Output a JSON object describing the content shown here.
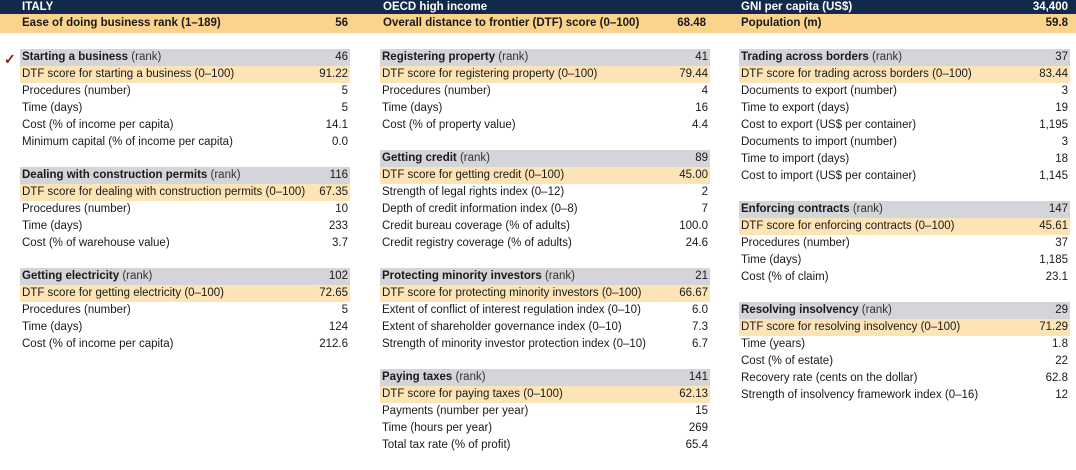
{
  "header": {
    "country": "ITALY",
    "income_group": "OECD high income",
    "gni_label": "GNI per capita (US$)",
    "gni_value": "34,400",
    "ease_label": "Ease of doing business rank (1–189)",
    "ease_value": "56",
    "dtf_label": "Overall distance to frontier (DTF) score (0–100)",
    "dtf_value": "68.48",
    "pop_label": "Population (m)",
    "pop_value": "59.8"
  },
  "marker": "✓",
  "columns": [
    [
      {
        "title": "Starting a business",
        "rank_suffix": " (rank)",
        "rank": "46",
        "rows": [
          {
            "label": "DTF score for starting a business (0–100)",
            "value": "91.22"
          },
          {
            "label": "Procedures (number)",
            "value": "5"
          },
          {
            "label": "Time (days)",
            "value": "5"
          },
          {
            "label": "Cost (% of income per capita)",
            "value": "14.1"
          },
          {
            "label": "Minimum capital (% of income per capita)",
            "value": "0.0"
          }
        ]
      },
      {
        "title": "Dealing with construction permits",
        "rank_suffix": " (rank)",
        "rank": "116",
        "rows": [
          {
            "label": "DTF score for dealing with construction permits (0–100)",
            "value": "67.35"
          },
          {
            "label": "Procedures (number)",
            "value": "10"
          },
          {
            "label": "Time (days)",
            "value": "233"
          },
          {
            "label": "Cost (% of warehouse value)",
            "value": "3.7"
          }
        ]
      },
      {
        "title": "Getting electricity",
        "rank_suffix": " (rank)",
        "rank": "102",
        "rows": [
          {
            "label": "DTF score for getting electricity (0–100)",
            "value": "72.65"
          },
          {
            "label": "Procedures (number)",
            "value": "5"
          },
          {
            "label": "Time (days)",
            "value": "124"
          },
          {
            "label": "Cost (% of income per capita)",
            "value": "212.6"
          }
        ]
      }
    ],
    [
      {
        "title": "Registering property",
        "rank_suffix": " (rank)",
        "rank": "41",
        "rows": [
          {
            "label": "DTF score for registering property (0–100)",
            "value": "79.44"
          },
          {
            "label": "Procedures (number)",
            "value": "4"
          },
          {
            "label": "Time (days)",
            "value": "16"
          },
          {
            "label": "Cost (% of property value)",
            "value": "4.4"
          }
        ]
      },
      {
        "title": "Getting credit",
        "rank_suffix": " (rank)",
        "rank": "89",
        "rows": [
          {
            "label": "DTF score for getting credit (0–100)",
            "value": "45.00"
          },
          {
            "label": "Strength of legal rights index (0–12)",
            "value": "2"
          },
          {
            "label": "Depth of credit information index (0–8)",
            "value": "7"
          },
          {
            "label": "Credit bureau coverage (% of adults)",
            "value": "100.0"
          },
          {
            "label": "Credit registry coverage (% of adults)",
            "value": "24.6"
          }
        ]
      },
      {
        "title": "Protecting minority investors",
        "rank_suffix": " (rank)",
        "rank": "21",
        "rows": [
          {
            "label": "DTF score for protecting minority investors (0–100)",
            "value": "66.67"
          },
          {
            "label": "Extent of conflict of interest regulation index (0–10)",
            "value": "6.0"
          },
          {
            "label": "Extent of shareholder governance index (0–10)",
            "value": "7.3"
          },
          {
            "label": "Strength of minority investor protection index (0–10)",
            "value": "6.7"
          }
        ]
      },
      {
        "title": "Paying taxes",
        "rank_suffix": " (rank)",
        "rank": "141",
        "rows": [
          {
            "label": "DTF score for paying taxes (0–100)",
            "value": "62.13"
          },
          {
            "label": "Payments (number per year)",
            "value": "15"
          },
          {
            "label": "Time (hours per year)",
            "value": "269"
          },
          {
            "label": "Total tax rate (% of profit)",
            "value": "65.4"
          }
        ]
      }
    ],
    [
      {
        "title": "Trading across borders",
        "rank_suffix": " (rank)",
        "rank": "37",
        "rows": [
          {
            "label": "DTF score for trading across borders (0–100)",
            "value": "83.44"
          },
          {
            "label": "Documents to export (number)",
            "value": "3"
          },
          {
            "label": "Time to export (days)",
            "value": "19"
          },
          {
            "label": "Cost to export (US$ per container)",
            "value": "1,195"
          },
          {
            "label": "Documents to import (number)",
            "value": "3"
          },
          {
            "label": "Time to import (days)",
            "value": "18"
          },
          {
            "label": "Cost to import (US$ per container)",
            "value": "1,145"
          }
        ]
      },
      {
        "title": "Enforcing contracts",
        "rank_suffix": " (rank)",
        "rank": "147",
        "rows": [
          {
            "label": "DTF score for enforcing contracts (0–100)",
            "value": "45.61"
          },
          {
            "label": "Procedures (number)",
            "value": "37"
          },
          {
            "label": "Time (days)",
            "value": "1,185"
          },
          {
            "label": "Cost (% of claim)",
            "value": "23.1"
          }
        ]
      },
      {
        "title": "Resolving insolvency",
        "rank_suffix": " (rank)",
        "rank": "29",
        "rows": [
          {
            "label": "DTF score for resolving insolvency (0–100)",
            "value": "71.29"
          },
          {
            "label": "Time (years)",
            "value": "1.8"
          },
          {
            "label": "Cost (% of estate)",
            "value": "22"
          },
          {
            "label": "Recovery rate (cents on the dollar)",
            "value": "62.8"
          },
          {
            "label": "Strength of insolvency framework index (0–16)",
            "value": "12"
          }
        ]
      }
    ]
  ]
}
